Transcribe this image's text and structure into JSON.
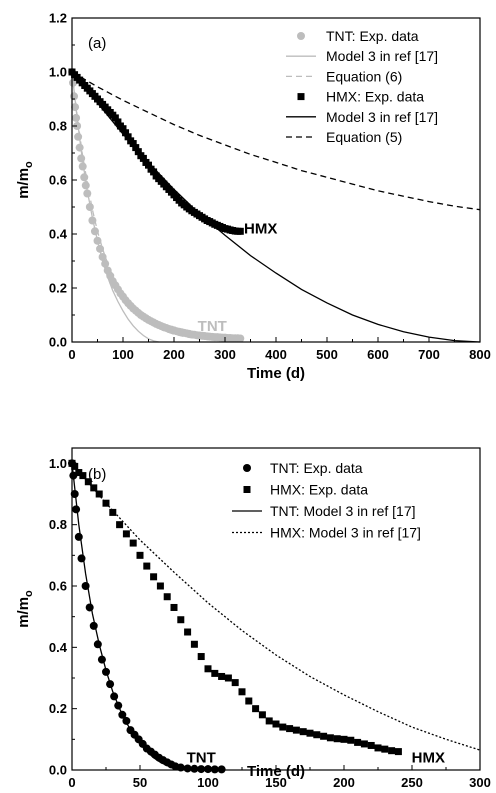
{
  "colors": {
    "hmx": "#000000",
    "tnt": "#bdbdbd",
    "tnt_b": "#000000",
    "axis": "#000000"
  },
  "chart_data": [
    {
      "type": "scatter",
      "panel_label": "(a)",
      "xlabel": "Time (d)",
      "ylabel": "m/m",
      "ylabel_subscript": "o",
      "xlim": [
        0,
        800
      ],
      "ylim": [
        0,
        1.2
      ],
      "xticks": [
        "0",
        "100",
        "200",
        "300",
        "400",
        "500",
        "600",
        "700",
        "800"
      ],
      "yticks": [
        "0.0",
        "0.2",
        "0.4",
        "0.6",
        "0.8",
        "1.0",
        "1.2"
      ],
      "legend_position": "top-right",
      "annotations": [
        {
          "text": "HMX",
          "x": 370,
          "y": 0.42
        },
        {
          "text": "TNT",
          "x": 275,
          "y": 0.06
        }
      ],
      "series": [
        {
          "name": "TNT: Exp. data",
          "kind": "scatter",
          "marker": "circle",
          "color": "#bdbdbd",
          "x": [
            0,
            2,
            4,
            6,
            8,
            10,
            12,
            15,
            18,
            21,
            24,
            27,
            30,
            35,
            40,
            45,
            50,
            55,
            60,
            65,
            70,
            75,
            80,
            85,
            90,
            95,
            100,
            105,
            110,
            115,
            120,
            125,
            130,
            135,
            140,
            145,
            150,
            155,
            160,
            165,
            170,
            175,
            180,
            185,
            190,
            195,
            200,
            205,
            210,
            215,
            220,
            225,
            230,
            235,
            240,
            245,
            250,
            255,
            260,
            265,
            270,
            275,
            280,
            285,
            290,
            295,
            300,
            305,
            310,
            315,
            320,
            325,
            330
          ],
          "y": [
            1.0,
            0.96,
            0.91,
            0.87,
            0.83,
            0.8,
            0.76,
            0.72,
            0.68,
            0.65,
            0.61,
            0.58,
            0.55,
            0.5,
            0.45,
            0.41,
            0.375,
            0.345,
            0.315,
            0.29,
            0.265,
            0.245,
            0.225,
            0.21,
            0.195,
            0.18,
            0.168,
            0.155,
            0.144,
            0.134,
            0.124,
            0.116,
            0.108,
            0.1,
            0.094,
            0.088,
            0.082,
            0.077,
            0.072,
            0.067,
            0.063,
            0.059,
            0.055,
            0.052,
            0.048,
            0.046,
            0.043,
            0.04,
            0.038,
            0.036,
            0.034,
            0.032,
            0.03,
            0.028,
            0.027,
            0.025,
            0.024,
            0.023,
            0.022,
            0.021,
            0.02,
            0.019,
            0.018,
            0.018,
            0.017,
            0.016,
            0.016,
            0.015,
            0.015,
            0.014,
            0.014,
            0.014,
            0.013
          ]
        },
        {
          "name": "Model 3 in ref [17]",
          "kind": "line",
          "dash": "solid",
          "color": "#bdbdbd",
          "x": [
            0,
            10,
            20,
            30,
            40,
            50,
            60,
            70,
            80,
            90,
            100,
            110,
            120,
            130,
            140,
            150,
            160,
            170
          ],
          "y": [
            1.0,
            0.83,
            0.68,
            0.56,
            0.46,
            0.375,
            0.3,
            0.24,
            0.19,
            0.15,
            0.115,
            0.085,
            0.06,
            0.04,
            0.024,
            0.012,
            0.004,
            0.0
          ]
        },
        {
          "name": "Equation (6)",
          "kind": "line",
          "dash": "dashed",
          "color": "#bdbdbd",
          "x": [
            0,
            10,
            20,
            30,
            40,
            50,
            60,
            70,
            80,
            90,
            100,
            120,
            140,
            160,
            180,
            200,
            220,
            240,
            260,
            280,
            300,
            320
          ],
          "y": [
            1.0,
            0.84,
            0.7,
            0.59,
            0.49,
            0.41,
            0.345,
            0.29,
            0.245,
            0.205,
            0.172,
            0.121,
            0.085,
            0.06,
            0.042,
            0.029,
            0.02,
            0.014,
            0.01,
            0.007,
            0.005,
            0.004
          ]
        },
        {
          "name": "HMX: Exp. data",
          "kind": "scatter",
          "marker": "square",
          "color": "#000000",
          "x": [
            0,
            5,
            10,
            15,
            20,
            25,
            30,
            35,
            40,
            45,
            50,
            55,
            60,
            65,
            70,
            75,
            80,
            85,
            90,
            95,
            100,
            105,
            110,
            115,
            120,
            125,
            130,
            135,
            140,
            145,
            150,
            155,
            160,
            165,
            170,
            175,
            180,
            185,
            190,
            195,
            200,
            205,
            210,
            215,
            220,
            225,
            230,
            235,
            240,
            245,
            250,
            255,
            260,
            265,
            270,
            275,
            280,
            285,
            290,
            295,
            300,
            305,
            310,
            315,
            320,
            325,
            330
          ],
          "y": [
            1.0,
            0.99,
            0.98,
            0.97,
            0.96,
            0.95,
            0.94,
            0.93,
            0.92,
            0.91,
            0.9,
            0.89,
            0.88,
            0.87,
            0.86,
            0.85,
            0.84,
            0.83,
            0.815,
            0.8,
            0.79,
            0.775,
            0.76,
            0.745,
            0.735,
            0.72,
            0.705,
            0.69,
            0.68,
            0.665,
            0.655,
            0.64,
            0.63,
            0.615,
            0.605,
            0.595,
            0.585,
            0.575,
            0.565,
            0.555,
            0.545,
            0.535,
            0.525,
            0.515,
            0.508,
            0.5,
            0.493,
            0.486,
            0.48,
            0.474,
            0.468,
            0.462,
            0.456,
            0.45,
            0.446,
            0.441,
            0.436,
            0.432,
            0.428,
            0.424,
            0.42,
            0.418,
            0.415,
            0.413,
            0.411,
            0.41,
            0.41
          ]
        },
        {
          "name": "Model 3 in ref [17]",
          "kind": "line",
          "dash": "solid",
          "color": "#000000",
          "x": [
            0,
            50,
            100,
            150,
            200,
            250,
            300,
            350,
            400,
            450,
            500,
            550,
            600,
            650,
            700,
            750,
            800
          ],
          "y": [
            1.0,
            0.885,
            0.77,
            0.665,
            0.565,
            0.475,
            0.395,
            0.32,
            0.255,
            0.195,
            0.145,
            0.1,
            0.065,
            0.038,
            0.018,
            0.005,
            0.0
          ]
        },
        {
          "name": "Equation (5)",
          "kind": "line",
          "dash": "dashed",
          "color": "#000000",
          "x": [
            0,
            50,
            100,
            150,
            200,
            250,
            300,
            350,
            400,
            450,
            500,
            550,
            600,
            650,
            700,
            750,
            800
          ],
          "y": [
            1.0,
            0.945,
            0.895,
            0.85,
            0.805,
            0.765,
            0.73,
            0.695,
            0.665,
            0.635,
            0.61,
            0.585,
            0.56,
            0.54,
            0.52,
            0.503,
            0.49
          ]
        }
      ]
    },
    {
      "type": "scatter",
      "panel_label": "(b)",
      "xlabel": "Time (d)",
      "ylabel": "m/m",
      "ylabel_subscript": "o",
      "xlim": [
        0,
        300
      ],
      "ylim": [
        0,
        1.05
      ],
      "xticks": [
        "0",
        "50",
        "100",
        "150",
        "200",
        "250",
        "300"
      ],
      "yticks": [
        "0.0",
        "0.2",
        "0.4",
        "0.6",
        "0.8",
        "1.0"
      ],
      "legend_position": "top-right",
      "annotations": [
        {
          "text": "TNT",
          "x": 95,
          "y": 0.04
        },
        {
          "text": "HMX",
          "x": 262,
          "y": 0.04
        }
      ],
      "series": [
        {
          "name": "TNT: Exp. data",
          "kind": "scatter",
          "marker": "circle",
          "color": "#000000",
          "x": [
            0,
            1,
            2,
            3,
            5,
            7,
            10,
            13,
            16,
            19,
            22,
            25,
            28,
            31,
            34,
            37,
            40,
            43,
            46,
            49,
            52,
            55,
            58,
            61,
            64,
            67,
            70,
            73,
            76,
            80,
            85,
            90,
            95,
            100,
            105,
            110
          ],
          "y": [
            1.0,
            0.96,
            0.9,
            0.85,
            0.76,
            0.69,
            0.6,
            0.53,
            0.47,
            0.41,
            0.36,
            0.32,
            0.28,
            0.24,
            0.21,
            0.18,
            0.16,
            0.13,
            0.115,
            0.1,
            0.085,
            0.07,
            0.06,
            0.05,
            0.04,
            0.032,
            0.025,
            0.018,
            0.012,
            0.008,
            0.005,
            0.004,
            0.003,
            0.003,
            0.002,
            0.002
          ]
        },
        {
          "name": "HMX: Exp. data",
          "kind": "scatter",
          "marker": "square",
          "color": "#000000",
          "x": [
            0,
            2,
            5,
            8,
            12,
            16,
            20,
            25,
            30,
            35,
            40,
            45,
            50,
            55,
            60,
            65,
            70,
            75,
            80,
            85,
            90,
            95,
            100,
            105,
            110,
            115,
            120,
            125,
            130,
            135,
            140,
            145,
            150,
            155,
            160,
            165,
            170,
            175,
            180,
            185,
            190,
            195,
            200,
            205,
            210,
            215,
            220,
            225,
            230,
            235,
            240
          ],
          "y": [
            1.0,
            0.99,
            0.97,
            0.96,
            0.94,
            0.92,
            0.9,
            0.87,
            0.84,
            0.8,
            0.77,
            0.74,
            0.7,
            0.665,
            0.63,
            0.6,
            0.565,
            0.53,
            0.49,
            0.45,
            0.41,
            0.37,
            0.33,
            0.315,
            0.305,
            0.3,
            0.285,
            0.255,
            0.225,
            0.2,
            0.18,
            0.16,
            0.15,
            0.14,
            0.135,
            0.13,
            0.125,
            0.12,
            0.115,
            0.11,
            0.105,
            0.102,
            0.1,
            0.097,
            0.09,
            0.085,
            0.08,
            0.072,
            0.068,
            0.063,
            0.06
          ]
        },
        {
          "name": "TNT: Model 3 in ref [17]",
          "kind": "line",
          "dash": "solid",
          "color": "#000000",
          "x": [
            0,
            5,
            10,
            15,
            20,
            25,
            30,
            35,
            40,
            45,
            50,
            55,
            60,
            65,
            70,
            75,
            80,
            85,
            90
          ],
          "y": [
            1.0,
            0.8,
            0.64,
            0.51,
            0.41,
            0.325,
            0.255,
            0.2,
            0.155,
            0.115,
            0.085,
            0.06,
            0.04,
            0.025,
            0.014,
            0.007,
            0.003,
            0.001,
            0.0
          ]
        },
        {
          "name": "HMX: Model 3 in ref [17]",
          "kind": "line",
          "dash": "dotted",
          "color": "#000000",
          "x": [
            0,
            25,
            50,
            75,
            100,
            125,
            150,
            175,
            200,
            225,
            250,
            275,
            300
          ],
          "y": [
            1.0,
            0.87,
            0.75,
            0.645,
            0.545,
            0.455,
            0.375,
            0.305,
            0.245,
            0.19,
            0.14,
            0.1,
            0.065
          ]
        }
      ]
    }
  ]
}
